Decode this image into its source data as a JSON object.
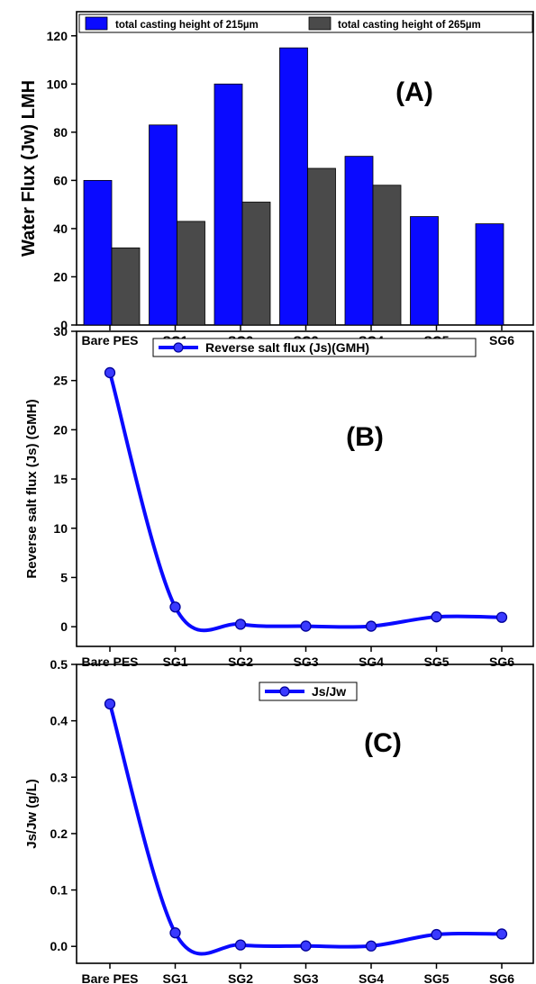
{
  "chart_data": [
    {
      "type": "bar",
      "panel_label": "(A)",
      "categories": [
        "Bare PES",
        "SG1",
        "SG2",
        "SG3",
        "SG4",
        "SG5",
        "SG6"
      ],
      "series": [
        {
          "name": "total casting height of 215µm",
          "color": "#0a0aff",
          "values": [
            60,
            83,
            100,
            115,
            70,
            45,
            42
          ]
        },
        {
          "name": "total casting height of 265µm",
          "color": "#4a4a4a",
          "values": [
            32,
            43,
            51,
            65,
            58,
            null,
            null
          ]
        }
      ],
      "xlabel": "",
      "ylabel": "Water Flux (Jw) LMH",
      "ylim": [
        0,
        130
      ],
      "yticks": [
        0,
        20,
        40,
        60,
        80,
        100,
        120
      ],
      "grid": false,
      "legend": "top"
    },
    {
      "type": "line",
      "panel_label": "(B)",
      "categories": [
        "Bare PES",
        "SG1",
        "SG2",
        "SG3",
        "SG4",
        "SG5",
        "SG6"
      ],
      "series": [
        {
          "name": "Reverse salt flux (Js)(GMH)",
          "color": "#0a0aff",
          "values": [
            25.8,
            2.0,
            0.25,
            0.05,
            0.05,
            1.0,
            0.95
          ]
        }
      ],
      "xlabel": "",
      "ylabel": "Reverse salt flux (Js) (GMH)",
      "ylim": [
        -2,
        30
      ],
      "yticks": [
        0,
        5,
        10,
        15,
        20,
        25,
        30
      ],
      "grid": false,
      "legend": "top-right"
    },
    {
      "type": "line",
      "panel_label": "(C)",
      "categories": [
        "Bare PES",
        "SG1",
        "SG2",
        "SG3",
        "SG4",
        "SG5",
        "SG6"
      ],
      "series": [
        {
          "name": "Js/Jw",
          "color": "#0a0aff",
          "values": [
            0.43,
            0.024,
            0.0025,
            0.0008,
            0.0007,
            0.021,
            0.022
          ]
        }
      ],
      "xlabel": "",
      "ylabel": "Js/Jw (g/L)",
      "ylim": [
        -0.03,
        0.5
      ],
      "yticks": [
        0.0,
        0.1,
        0.2,
        0.3,
        0.4,
        0.5
      ],
      "ytick_labels": [
        "0.0",
        "0.1",
        "0.2",
        "0.3",
        "0.4",
        "0.5"
      ],
      "grid": false,
      "legend": "top-center"
    }
  ]
}
